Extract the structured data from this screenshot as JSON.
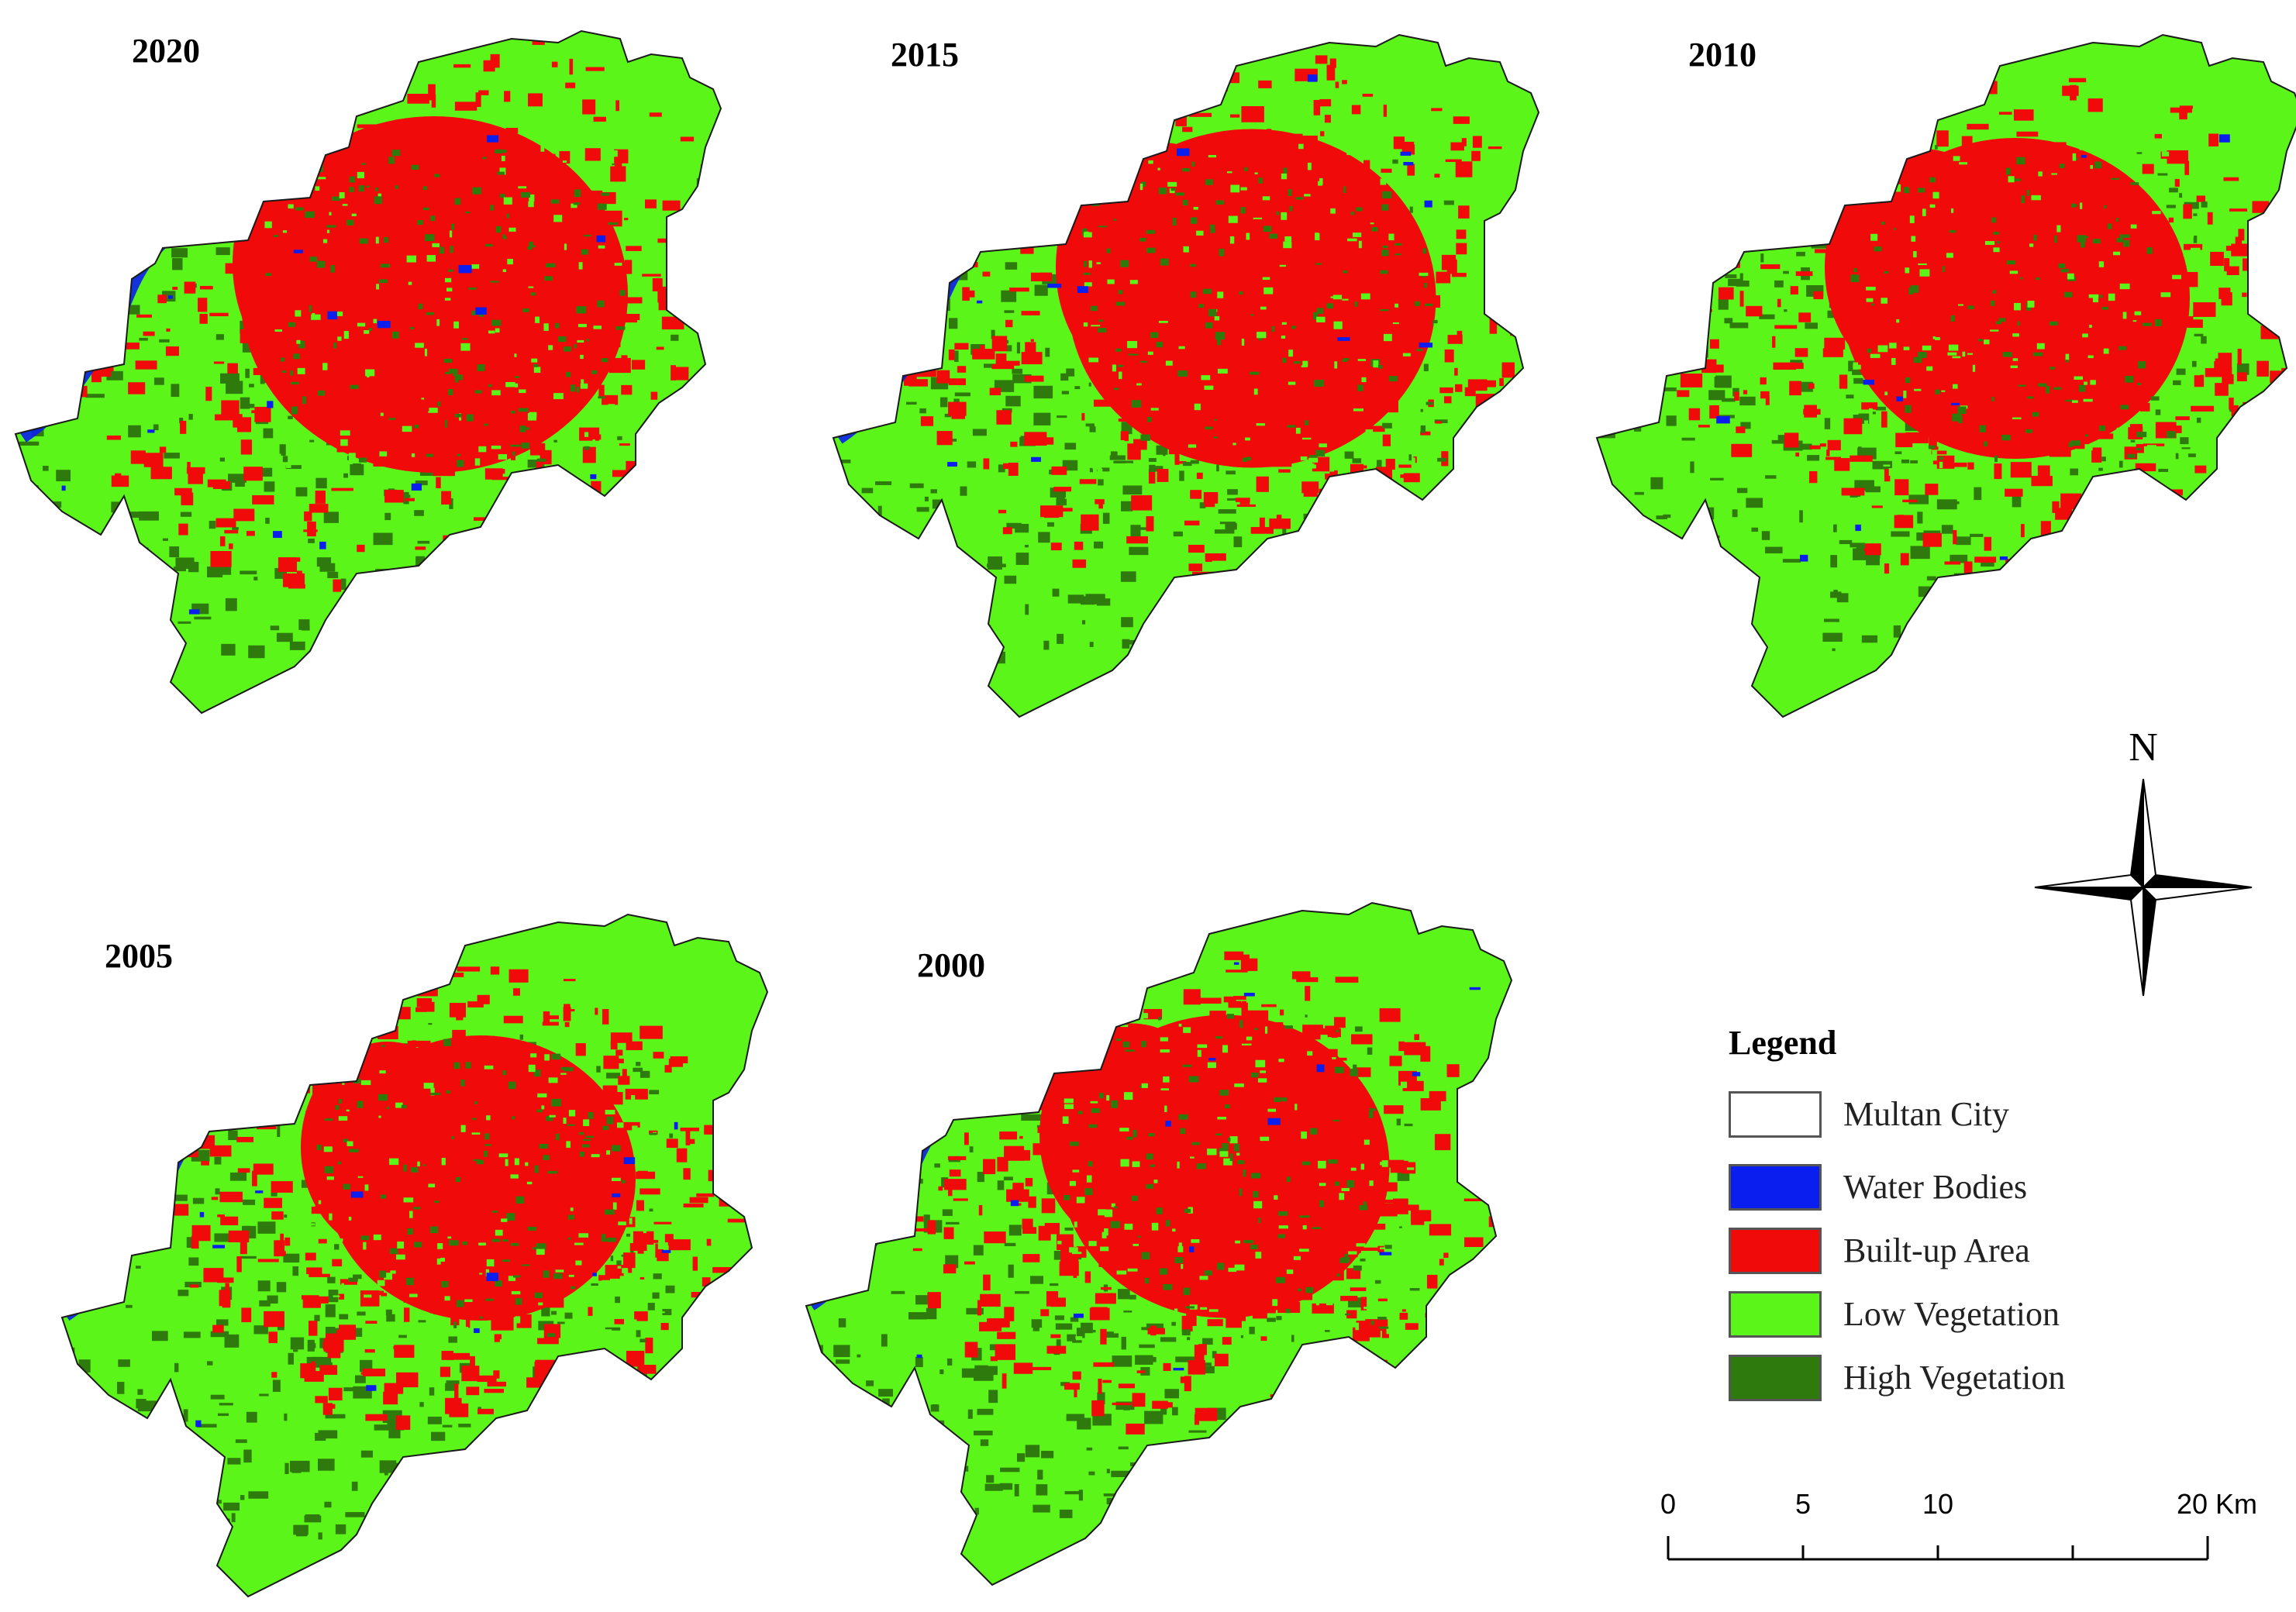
{
  "maps": [
    {
      "year": "2020"
    },
    {
      "year": "2015"
    },
    {
      "year": "2010"
    },
    {
      "year": "2005"
    },
    {
      "year": "2000"
    }
  ],
  "colors": {
    "water_bodies": "#0a1ef0",
    "built_up": "#f00a0a",
    "low_vegetation": "#5cf51a",
    "high_vegetation": "#2f7a0c",
    "city_outline": "#ffffff"
  },
  "north_arrow": {
    "label": "N"
  },
  "legend": {
    "title": "Legend",
    "items": [
      {
        "label": "Multan City",
        "color": "#ffffff"
      },
      {
        "label": "Water Bodies",
        "color": "#0a1ef0"
      },
      {
        "label": "Built-up Area",
        "color": "#f00a0a"
      },
      {
        "label": "Low Vegetation",
        "color": "#5cf51a"
      },
      {
        "label": "High Vegetation",
        "color": "#2f7a0c"
      }
    ]
  },
  "scale_bar": {
    "labels": [
      "0",
      "5",
      "10",
      "20 Km"
    ]
  }
}
